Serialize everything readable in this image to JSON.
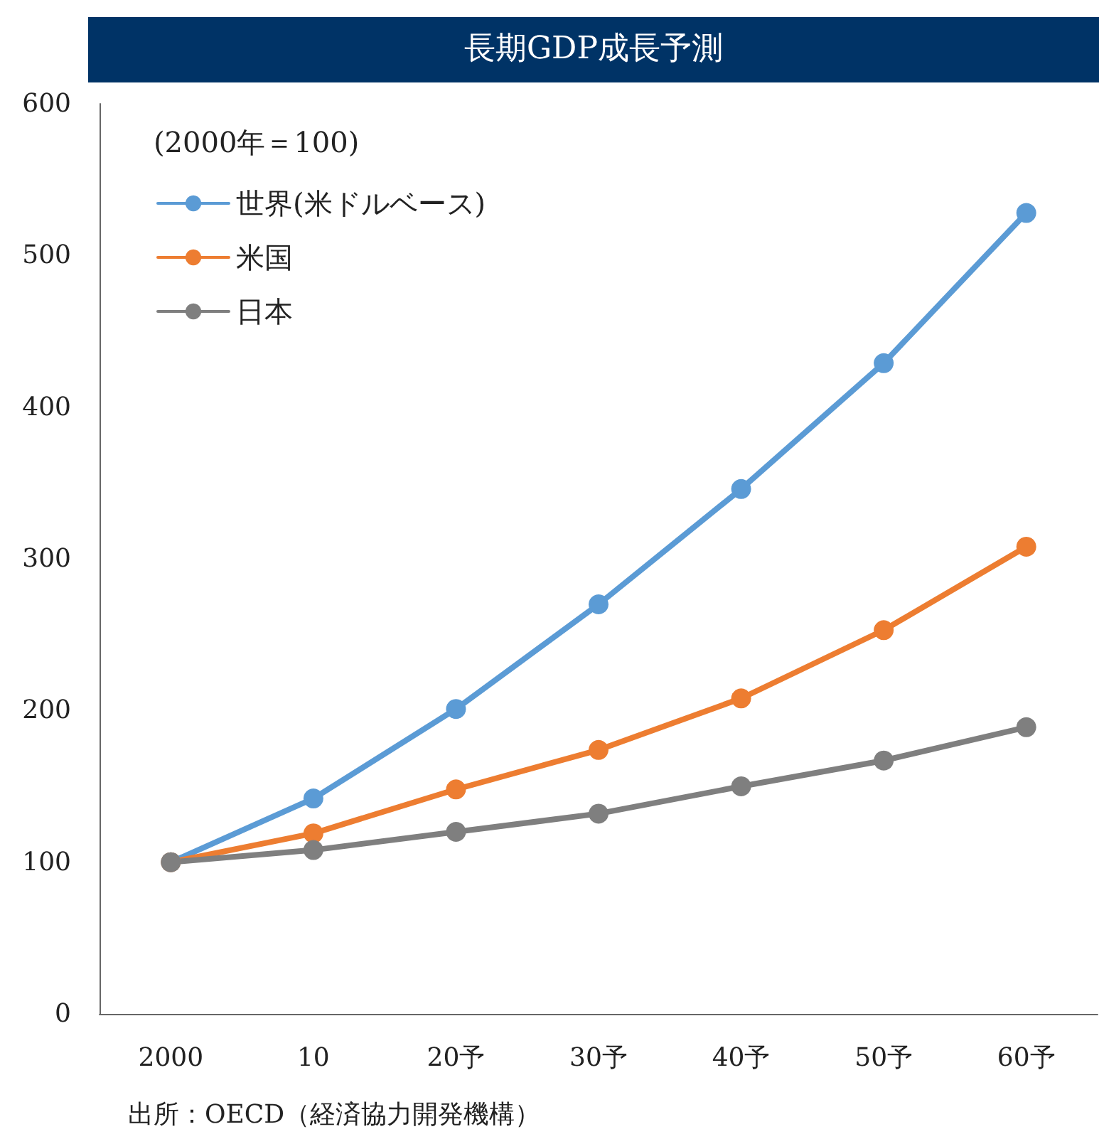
{
  "chart_data": {
    "type": "line",
    "title": "長期GDP成長予測",
    "ylabel": "(2000年＝100)",
    "categories": [
      "2000",
      "10",
      "20予",
      "30予",
      "40予",
      "50予",
      "60予"
    ],
    "series": [
      {
        "name": "世界(米ドルベース)",
        "color": "#5b9bd5",
        "values": [
          100,
          142,
          201,
          270,
          346,
          429,
          528
        ]
      },
      {
        "name": "米国",
        "color": "#ed7d31",
        "values": [
          100,
          119,
          148,
          174,
          208,
          253,
          308
        ]
      },
      {
        "name": "日本",
        "color": "#7f7f7f",
        "values": [
          100,
          108,
          120,
          132,
          150,
          167,
          189
        ]
      }
    ],
    "ylim": [
      0,
      600
    ],
    "yticks": [
      0,
      100,
      200,
      300,
      400,
      500,
      600
    ],
    "grid": false,
    "legend": "top left",
    "marker": "circle",
    "line_style": "solid",
    "annotations": [
      "出所：OECD（経済協力開発機構）"
    ]
  }
}
